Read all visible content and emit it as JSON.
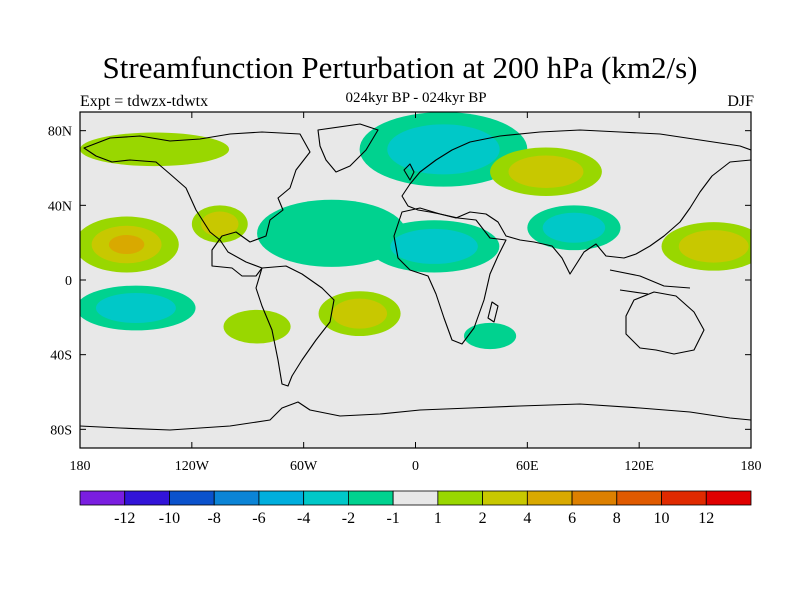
{
  "header": {
    "title": "Streamfunction Perturbation at 200 hPa (km2/s)",
    "subtitle": "024kyr BP - 024kyr BP",
    "left_label": "Expt = tdwzx-tdwtx",
    "right_label": "DJF"
  },
  "map": {
    "projection": "cylindrical-equidistant",
    "lon_range": [
      -180,
      180
    ],
    "lat_range": [
      -90,
      90
    ],
    "background_color": "#e8e8e8",
    "land_outline_color": "#000000",
    "x_ticks": [
      {
        "lon": -180,
        "label": "180"
      },
      {
        "lon": -120,
        "label": "120W"
      },
      {
        "lon": -60,
        "label": "60W"
      },
      {
        "lon": 0,
        "label": "0"
      },
      {
        "lon": 60,
        "label": "60E"
      },
      {
        "lon": 120,
        "label": "120E"
      },
      {
        "lon": 180,
        "label": "180"
      }
    ],
    "y_ticks": [
      {
        "lat": 80,
        "label": "80N"
      },
      {
        "lat": 40,
        "label": "40N"
      },
      {
        "lat": 0,
        "label": "0"
      },
      {
        "lat": -40,
        "label": "40S"
      },
      {
        "lat": -80,
        "label": "80S"
      }
    ],
    "anomalies": [
      {
        "name": "arctic-north-atlantic-negative",
        "lon": 15,
        "lat": 70,
        "rlon": 45,
        "rlat": 20,
        "levels": [
          "#00d28f",
          "#00c8c8"
        ]
      },
      {
        "name": "north-atlantic-west-negative",
        "lon": -45,
        "lat": 25,
        "rlon": 40,
        "rlat": 18,
        "levels": [
          "#00d28f"
        ]
      },
      {
        "name": "central-atlantic-africa-negative",
        "lon": 10,
        "lat": 18,
        "rlon": 35,
        "rlat": 14,
        "levels": [
          "#00d28f",
          "#00c8c8"
        ]
      },
      {
        "name": "south-asia-negative",
        "lon": 85,
        "lat": 28,
        "rlon": 25,
        "rlat": 12,
        "levels": [
          "#00d28f",
          "#00c8c8"
        ]
      },
      {
        "name": "south-pacific-negative",
        "lon": -150,
        "lat": -15,
        "rlon": 32,
        "rlat": 12,
        "levels": [
          "#00d28f",
          "#00c8c8"
        ]
      },
      {
        "name": "south-africa-negative",
        "lon": 40,
        "lat": -30,
        "rlon": 14,
        "rlat": 7,
        "levels": [
          "#00d28f"
        ]
      },
      {
        "name": "north-pacific-positive",
        "lon": -155,
        "lat": 19,
        "rlon": 28,
        "rlat": 15,
        "levels": [
          "#99d700",
          "#c8c800",
          "#d9a900"
        ]
      },
      {
        "name": "west-pacific-positive",
        "lon": 160,
        "lat": 18,
        "rlon": 28,
        "rlat": 13,
        "levels": [
          "#99d700",
          "#c8c800"
        ]
      },
      {
        "name": "eurasia-positive",
        "lon": 70,
        "lat": 58,
        "rlon": 30,
        "rlat": 13,
        "levels": [
          "#99d700",
          "#c8c800"
        ]
      },
      {
        "name": "south-atlantic-positive",
        "lon": -30,
        "lat": -18,
        "rlon": 22,
        "rlat": 12,
        "levels": [
          "#99d700",
          "#c8c800"
        ]
      },
      {
        "name": "southeast-pacific-positive",
        "lon": -85,
        "lat": -25,
        "rlon": 18,
        "rlat": 9,
        "levels": [
          "#99d700"
        ]
      },
      {
        "name": "north-america-positive",
        "lon": -105,
        "lat": 30,
        "rlon": 15,
        "rlat": 10,
        "levels": [
          "#99d700",
          "#c8c800"
        ]
      },
      {
        "name": "arctic-canada-positive",
        "lon": -140,
        "lat": 70,
        "rlon": 40,
        "rlat": 9,
        "levels": [
          "#99d700"
        ]
      }
    ]
  },
  "colorbar": {
    "colors": [
      "#7a1ee0",
      "#3214d8",
      "#0a52cc",
      "#0b84d6",
      "#00aedd",
      "#00c8c8",
      "#00d28f",
      "#e8e8e8",
      "#99d700",
      "#c8c800",
      "#d9a900",
      "#dd8000",
      "#e05a00",
      "#e02a00",
      "#e00000"
    ],
    "labels": [
      "-12",
      "-10",
      "-8",
      "-6",
      "-4",
      "-2",
      "-1",
      "1",
      "2",
      "4",
      "6",
      "8",
      "10",
      "12"
    ]
  }
}
